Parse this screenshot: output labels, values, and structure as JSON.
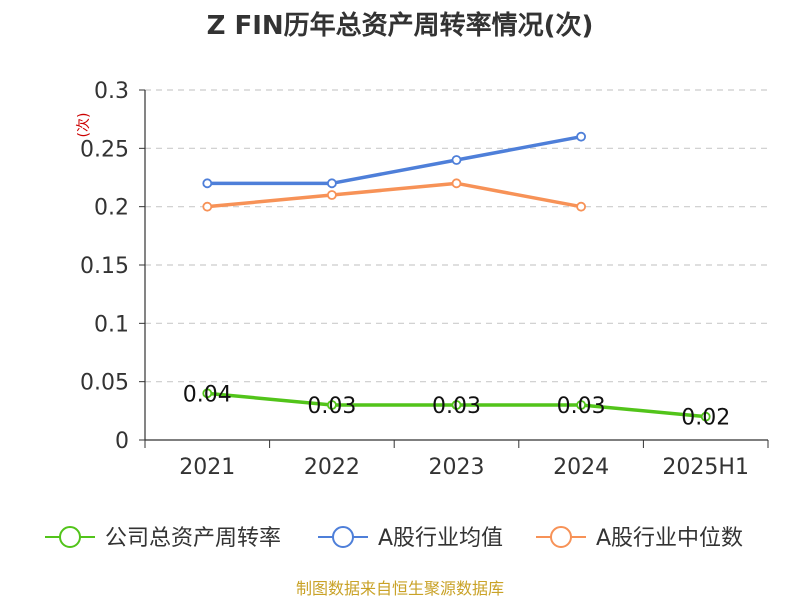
{
  "chart_data": {
    "type": "line",
    "title": "Z FIN历年总资产周转率情况(次)",
    "ylabel": "(次)",
    "categories": [
      "2021",
      "2022",
      "2023",
      "2024",
      "2025H1"
    ],
    "ylim": [
      0,
      0.3
    ],
    "yticks": [
      "0",
      "0.05",
      "0.1",
      "0.15",
      "0.2",
      "0.25",
      "0.3"
    ],
    "grid": true,
    "legend_position": "bottom",
    "series": [
      {
        "name": "公司总资产周转率",
        "color": "#52c41a",
        "values": [
          0.04,
          0.03,
          0.03,
          0.03,
          0.02
        ],
        "labels": [
          "0.04",
          "0.03",
          "0.03",
          "0.03",
          "0.02"
        ]
      },
      {
        "name": "A股行业均值",
        "color": "#4e7fd9",
        "values": [
          0.22,
          0.22,
          0.24,
          0.26,
          null
        ]
      },
      {
        "name": "A股行业中位数",
        "color": "#f79257",
        "values": [
          0.2,
          0.21,
          0.22,
          0.2,
          null
        ]
      }
    ]
  },
  "source": "制图数据来自恒生聚源数据库"
}
